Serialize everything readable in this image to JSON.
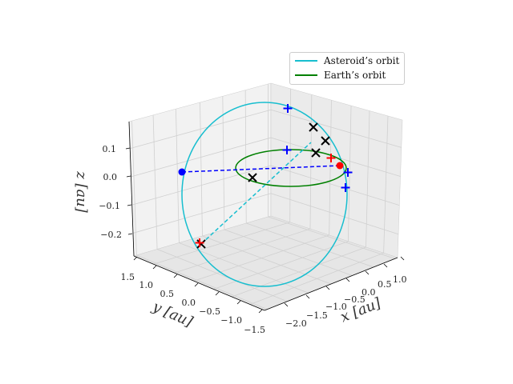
{
  "chart_data": {
    "type": "scatter",
    "title": "",
    "xlabel": "x [au]",
    "ylabel": "y [au]",
    "zlabel": "z [au]",
    "xlim": [
      -2.2,
      1.1
    ],
    "ylim": [
      -1.6,
      1.6
    ],
    "zlim": [
      -0.27,
      0.17
    ],
    "x_ticks": [
      "−2.0",
      "−1.5",
      "−1.0",
      "−0.5",
      "0.0",
      "0.5",
      "1.0"
    ],
    "y_ticks": [
      "1.5",
      "1.0",
      "0.5",
      "0.0",
      "−0.5",
      "−1.0",
      "−1.5"
    ],
    "z_ticks": [
      "0.1",
      "0.0",
      "−0.1",
      "−0.2"
    ],
    "grid": true,
    "legend_position": "top-right",
    "series": [
      {
        "name": "Asteroid’s orbit",
        "color": "#17becf",
        "style": "solid-line"
      },
      {
        "name": "Earth’s orbit",
        "color": "#008000",
        "style": "solid-line"
      },
      {
        "color": "#0000ff",
        "style": "dashed-line",
        "points": [
          [
            -0.95,
            1.25,
            0.02
          ],
          [
            0.7,
            -0.3,
            0.04
          ]
        ]
      },
      {
        "color": "#17becf",
        "style": "dashed-line",
        "points": [
          [
            -1.4,
            1.1,
            -0.19
          ],
          [
            0.3,
            -0.4,
            0.12
          ]
        ]
      },
      {
        "color": "#0000ff",
        "marker": "dot",
        "points": [
          [
            -0.95,
            1.25,
            0.02
          ]
        ]
      },
      {
        "color": "#ff0000",
        "marker": "dot",
        "points": [
          [
            0.7,
            -0.3,
            0.04
          ]
        ]
      },
      {
        "color": "#000000",
        "marker": "x",
        "points": [
          [
            0.05,
            -0.9,
            0.18
          ],
          [
            0.25,
            -0.75,
            0.15
          ],
          [
            0.2,
            -0.7,
            0.09
          ],
          [
            -0.3,
            0.1,
            0.01
          ],
          [
            -1.4,
            1.1,
            -0.19
          ]
        ]
      },
      {
        "color": "#0000ff",
        "marker": "+",
        "points": [
          [
            -0.6,
            -1.1,
            0.22
          ],
          [
            -0.3,
            -0.4,
            0.06
          ],
          [
            0.8,
            -0.25,
            0.02
          ],
          [
            0.8,
            -0.25,
            -0.02
          ]
        ]
      },
      {
        "color": "#ff0000",
        "marker": "+",
        "points": [
          [
            0.6,
            -0.5,
            0.05
          ],
          [
            -1.4,
            1.1,
            -0.19
          ]
        ]
      }
    ]
  }
}
